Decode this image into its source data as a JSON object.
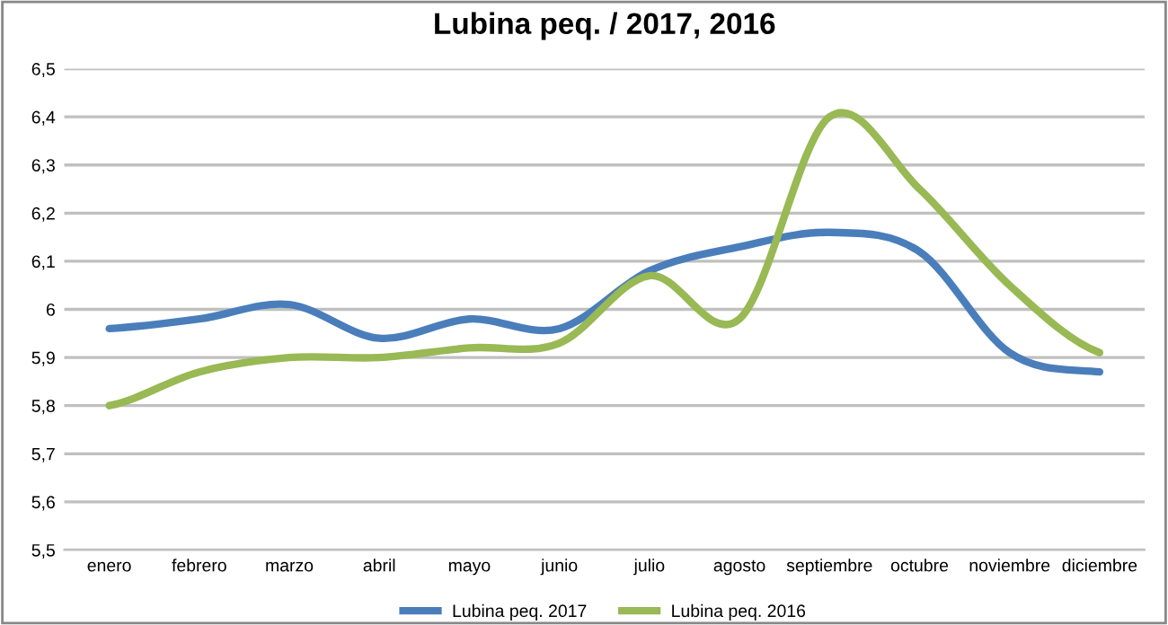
{
  "chart_data": {
    "type": "line",
    "title": "Lubina peq. / 2017, 2016",
    "categories": [
      "enero",
      "febrero",
      "marzo",
      "abril",
      "mayo",
      "junio",
      "julio",
      "agosto",
      "septiembre",
      "octubre",
      "noviembre",
      "diciembre"
    ],
    "series": [
      {
        "name": "Lubina peq. 2017",
        "color": "#4a7ebb",
        "values": [
          5.96,
          5.98,
          6.01,
          5.94,
          5.98,
          5.96,
          6.08,
          6.13,
          6.16,
          6.12,
          5.91,
          5.87
        ]
      },
      {
        "name": "Lubina peq. 2016",
        "color": "#98b954",
        "values": [
          5.8,
          5.87,
          5.9,
          5.9,
          5.92,
          5.93,
          6.07,
          5.98,
          6.4,
          6.25,
          6.05,
          5.91
        ]
      }
    ],
    "ylim": [
      5.5,
      6.5
    ],
    "yticks": [
      {
        "value": 5.5,
        "label": "5,5"
      },
      {
        "value": 5.6,
        "label": "5,6"
      },
      {
        "value": 5.7,
        "label": "5,7"
      },
      {
        "value": 5.8,
        "label": "5,8"
      },
      {
        "value": 5.9,
        "label": "5,9"
      },
      {
        "value": 6,
        "label": "6"
      },
      {
        "value": 6.1,
        "label": "6,1"
      },
      {
        "value": 6.2,
        "label": "6,2"
      },
      {
        "value": 6.3,
        "label": "6,3"
      },
      {
        "value": 6.4,
        "label": "6,4"
      },
      {
        "value": 6.5,
        "label": "6,5"
      }
    ],
    "grid": "y",
    "legend": "bottom",
    "marker": "none",
    "line_style": "solid"
  }
}
